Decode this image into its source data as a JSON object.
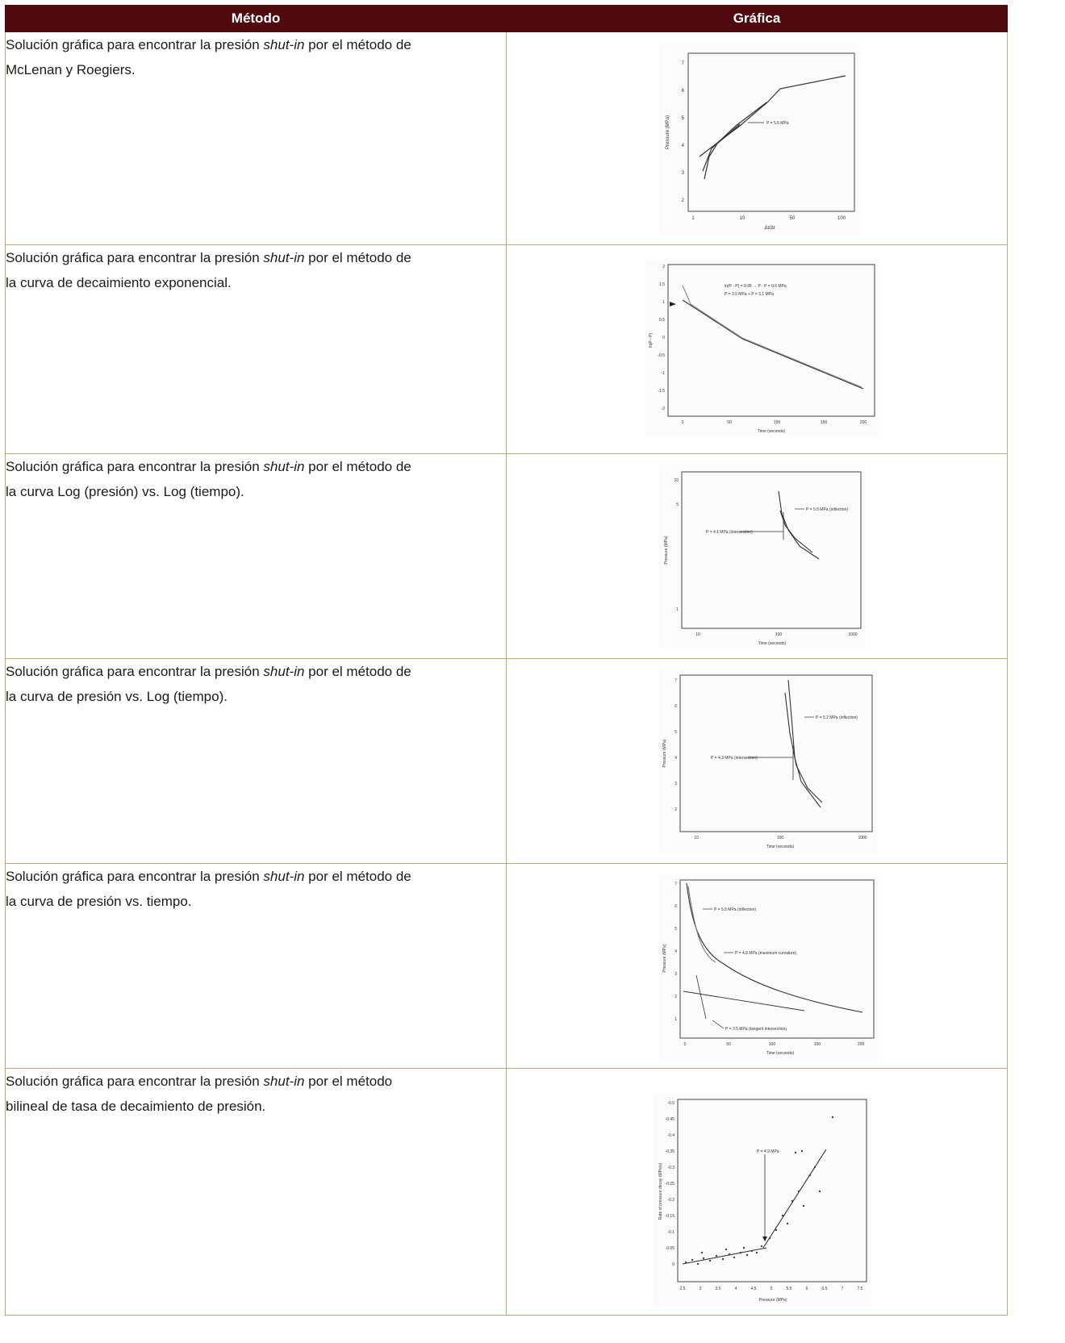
{
  "table": {
    "headers": {
      "method": "Método",
      "graph": "Gráfica"
    },
    "rows": [
      {
        "pre": "Solución gráfica para encontrar la presión ",
        "em": "shut-in",
        "post": " por el método de McLenan y Roegiers.",
        "figure": {
          "ylabel": "Pressure (MPa)",
          "xlabel": "Δt/Δt",
          "yticks": [
            "7",
            "6",
            "5",
            "4",
            "3",
            "2"
          ],
          "xticks": [
            "1",
            "10",
            "50",
            "100"
          ],
          "annotations": [
            "P = 5.5 MPa"
          ]
        }
      },
      {
        "pre": "Solución gráfica para encontrar la presión ",
        "em": "shut-in",
        "post": " por el método de la curva de decaimiento exponencial.",
        "figure": {
          "ylabel": "ln(P - P)",
          "xlabel": "Time (seconds)",
          "yticks": [
            "2",
            "1.5",
            "1",
            "0.5",
            "0",
            "-0.5",
            "-1",
            "-1.5",
            "-2"
          ],
          "xticks": [
            "0",
            "50",
            "100",
            "150",
            "200"
          ],
          "annotations": [
            "ln(P - P) = 0.95 → P - P = 0.6 MPa",
            "P = 3.5 MPa + P = 3.1 MPa"
          ]
        }
      },
      {
        "pre": "Solución gráfica para encontrar la presión ",
        "em": "shut-in",
        "post": " por el método de la curva Log (presión) vs. Log (tiempo).",
        "figure": {
          "ylabel": "Pressure (MPa)",
          "xlabel": "Time (seconds)",
          "yticks": [
            "10",
            "5",
            "1"
          ],
          "xticks": [
            "10",
            "100",
            "1000"
          ],
          "annotations": [
            "P = 5.5 MPa (inflection)",
            "P = 4.1 MPa (intersection)"
          ]
        }
      },
      {
        "pre": "Solución gráfica para encontrar la presión ",
        "em": "shut-in",
        "post": " por el método de la curva de presión vs. Log (tiempo).",
        "figure": {
          "ylabel": "Pressure (MPa)",
          "xlabel": "Time (seconds)",
          "yticks": [
            "7",
            "6",
            "5",
            "4",
            "3",
            "2"
          ],
          "xticks": [
            "10",
            "100",
            "1000"
          ],
          "annotations": [
            "P = 5.2 MPa (inflection)",
            "P = 4.3 MPa (intersection)"
          ]
        }
      },
      {
        "pre": "Solución gráfica para encontrar la presión ",
        "em": "shut-in",
        "post": " por el método de la curva de presión vs. tiempo.",
        "figure": {
          "ylabel": "Pressure (MPa)",
          "xlabel": "Time (seconds)",
          "yticks": [
            "7",
            "6",
            "5",
            "4",
            "3",
            "2",
            "1"
          ],
          "xticks": [
            "0",
            "50",
            "100",
            "150",
            "200"
          ],
          "annotations": [
            "P = 5.5 MPa (inflection)",
            "P = 4.8 MPa (maximum curvature)",
            "P = 3.5 MPa (tangent intersection)"
          ]
        }
      },
      {
        "pre": "Solución gráfica para encontrar la presión ",
        "em": "shut-in",
        "post": " por el método bilineal de tasa de decaimiento de presión.",
        "figure": {
          "ylabel": "Rate of pressure decay (MPa/s)",
          "xlabel": "Pressure (MPa)",
          "yticks": [
            "-0.5",
            "-0.45",
            "-0.4",
            "-0.35",
            "-0.3",
            "-0.25",
            "-0.2",
            "-0.15",
            "-0.1",
            "-0.05",
            "0"
          ],
          "xticks": [
            "2.5",
            "3",
            "3.5",
            "4",
            "4.5",
            "5",
            "5.5",
            "6",
            "6.5",
            "7",
            "7.5"
          ],
          "annotations": [
            "P = 4.9 MPa"
          ]
        }
      }
    ]
  }
}
